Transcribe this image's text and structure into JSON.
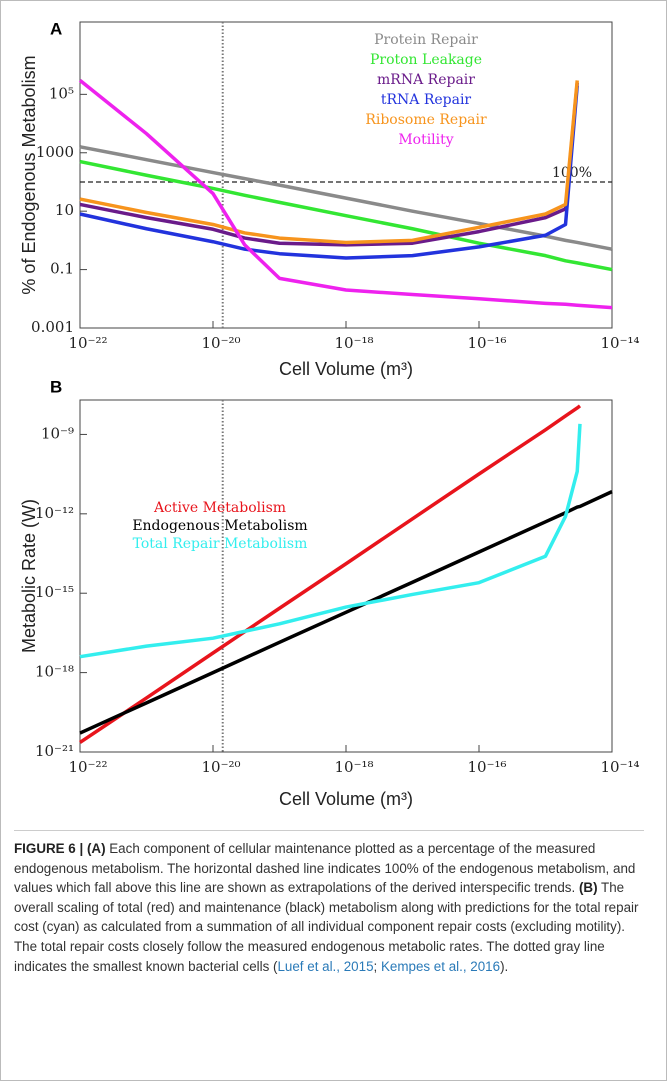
{
  "chart_data": [
    {
      "type": "line",
      "panel": "A",
      "y_label": "% of Endogenous Metabolism",
      "x_label": "Cell Volume (m³)",
      "xscale": "log",
      "yscale": "log",
      "legend": "upper center",
      "xlim": [
        1e-22,
        1e-14
      ],
      "ylim": [
        0.001,
        30000000
      ],
      "xticks": [
        {
          "value": 1e-22,
          "label": "10⁻²²"
        },
        {
          "value": 1e-20,
          "label": "10⁻²⁰"
        },
        {
          "value": 1e-18,
          "label": "10⁻¹⁸"
        },
        {
          "value": 1e-16,
          "label": "10⁻¹⁶"
        },
        {
          "value": 1e-14,
          "label": "10⁻¹⁴"
        }
      ],
      "yticks": [
        0.001,
        0.1,
        10,
        1000,
        {
          "value": 100000,
          "label": "10⁵"
        }
      ],
      "hlines": [
        {
          "value": 100,
          "label": "100%"
        }
      ],
      "vlines": [
        {
          "value": 1.4e-20
        }
      ],
      "x": [
        1e-22,
        1e-21,
        1e-20,
        3e-20,
        1e-19,
        1e-18,
        1e-17,
        1e-16,
        1e-15,
        2e-15,
        3e-15,
        1e-14
      ],
      "series": [
        {
          "name": "Protein Repair",
          "color": "#8a8a8a",
          "values": [
            1600,
            580,
            210,
            130,
            78,
            28,
            10,
            3.8,
            1.4,
            1,
            0.85,
            0.5
          ]
        },
        {
          "name": "Proton Leakage",
          "color": "#33e633",
          "values": [
            500,
            170,
            60,
            35,
            20,
            7,
            2.5,
            0.8,
            0.3,
            0.2,
            0.17,
            0.1
          ]
        },
        {
          "name": "mRNA Repair",
          "color": "#6a1b8a",
          "values": [
            17,
            6,
            2.4,
            1.2,
            0.8,
            0.7,
            0.8,
            2.0,
            6,
            12,
            250000,
            null
          ]
        },
        {
          "name": "tRNA Repair",
          "color": "#2233dd",
          "values": [
            8,
            2.5,
            0.9,
            0.5,
            0.35,
            0.25,
            0.3,
            0.6,
            1.5,
            3.5,
            200000,
            null
          ]
        },
        {
          "name": "Ribosome Repair",
          "color": "#f7941d",
          "values": [
            26,
            9,
            3.5,
            1.8,
            1.2,
            0.85,
            1.0,
            2.8,
            8,
            17,
            300000,
            null
          ]
        },
        {
          "name": "Motility",
          "color": "#ee22ee",
          "values": [
            300000,
            4500,
            40,
            0.7,
            0.05,
            0.02,
            0.014,
            0.01,
            0.007,
            0.0065,
            0.006,
            0.005
          ]
        }
      ]
    },
    {
      "type": "line",
      "panel": "B",
      "y_label": "Metabolic Rate (W)",
      "x_label": "Cell Volume (m³)",
      "xscale": "log",
      "yscale": "log",
      "legend": "center left",
      "xlim": [
        1e-22,
        1e-14
      ],
      "ylim": [
        1e-21,
        2e-08
      ],
      "xticks": [
        {
          "value": 1e-22,
          "label": "10⁻²²"
        },
        {
          "value": 1e-20,
          "label": "10⁻²⁰"
        },
        {
          "value": 1e-18,
          "label": "10⁻¹⁸"
        },
        {
          "value": 1e-16,
          "label": "10⁻¹⁶"
        },
        {
          "value": 1e-14,
          "label": "10⁻¹⁴"
        }
      ],
      "yticks": [
        {
          "value": 1e-21,
          "label": "10⁻²¹"
        },
        {
          "value": 1e-18,
          "label": "10⁻¹⁸"
        },
        {
          "value": 1e-15,
          "label": "10⁻¹⁵"
        },
        {
          "value": 1e-12,
          "label": "10⁻¹²"
        },
        {
          "value": 1e-09,
          "label": "10⁻⁹"
        }
      ],
      "vlines": [
        {
          "value": 1.4e-20
        }
      ],
      "x": [
        1e-22,
        1e-21,
        1e-20,
        1e-19,
        1e-18,
        1e-17,
        1e-16,
        1e-15,
        2e-15,
        3e-15,
        3.3e-15,
        1e-14
      ],
      "series": [
        {
          "name": "Active Metabolism",
          "color": "#e8141c",
          "values": [
            2.3e-21,
            1.1e-19,
            5.5e-18,
            2.7e-16,
            1.3e-14,
            6.5e-13,
            3.2e-11,
            1.5e-09,
            5e-09,
            1e-08,
            1.2e-08,
            null
          ]
        },
        {
          "name": "Endogenous Metabolism",
          "color": "#000000",
          "values": [
            5.2e-21,
            7.2e-20,
            1e-18,
            1.4e-17,
            1.9e-16,
            2.6e-15,
            3.6e-14,
            5e-13,
            1.1e-12,
            1.8e-12,
            1.9e-12,
            6.9e-12
          ]
        },
        {
          "name": "Total Repair Metabolism",
          "color": "#33eeee",
          "values": [
            4e-18,
            1e-17,
            2e-17,
            7e-17,
            3e-16,
            9e-16,
            2.5e-15,
            2.5e-14,
            8e-13,
            4e-11,
            2.5e-09,
            null
          ]
        }
      ]
    }
  ],
  "caption": {
    "segments": [
      {
        "text": "FIGURE 6 | (A)",
        "style": "bold"
      },
      {
        "text": " Each component of cellular maintenance plotted as a percentage of the measured endogenous metabolism. The horizontal dashed line indicates 100% of the endogenous metabolism, and values which fall above this line are shown as extrapolations of the derived interspecific trends. "
      },
      {
        "text": "(B)",
        "style": "bold"
      },
      {
        "text": " The overall scaling of total (red) and maintenance (black) metabolism along with predictions for the total repair cost (cyan) as calculated from a summation of all individual component repair costs (excluding motility). The total repair costs closely follow the measured endogenous metabolic rates. The dotted gray line indicates the smallest known bacterial cells ("
      },
      {
        "text": "Luef et al., 2015",
        "style": "link"
      },
      {
        "text": "; "
      },
      {
        "text": "Kempes et al., 2016",
        "style": "link"
      },
      {
        "text": ")."
      }
    ]
  }
}
